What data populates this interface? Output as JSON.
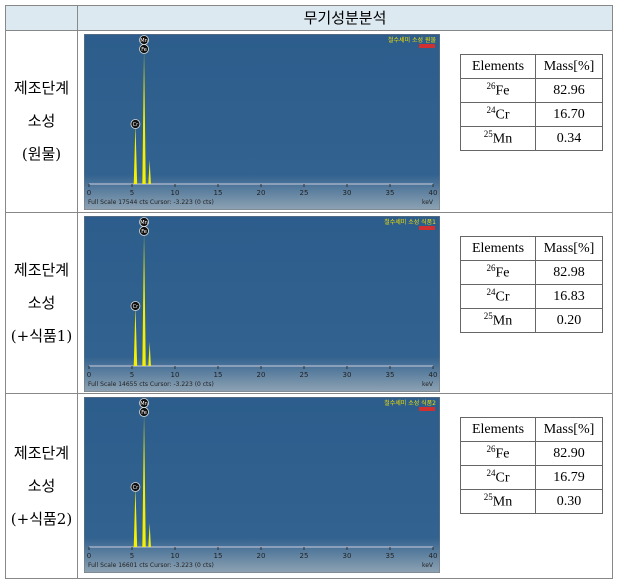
{
  "table": {
    "header": "무기성분분석",
    "rows": [
      {
        "stage": [
          "제조단계",
          "소성",
          "(원물)"
        ],
        "spectrum": {
          "sample_label": "철수세미 소성 원물",
          "footer": "Full Scale 17544 cts Cursor: -3.223 (0 cts)",
          "unit": "keV",
          "peaks": [
            "Mn",
            "Fe",
            "Cr"
          ],
          "xticks": [
            0,
            5,
            10,
            15,
            20,
            25,
            30,
            35,
            40
          ]
        },
        "elements": {
          "header": [
            "Elements",
            "Mass[%]"
          ],
          "rows": [
            [
              "26",
              "Fe",
              "82.96"
            ],
            [
              "24",
              "Cr",
              "16.70"
            ],
            [
              "25",
              "Mn",
              "0.34"
            ]
          ]
        }
      },
      {
        "stage": [
          "제조단계",
          "소성",
          "(+식품1)"
        ],
        "spectrum": {
          "sample_label": "철수세미 소성 식품1",
          "footer": "Full Scale 14655 cts Cursor: -3.223 (0 cts)",
          "unit": "keV",
          "peaks": [
            "Mn",
            "Fe",
            "Cr"
          ],
          "xticks": [
            0,
            5,
            10,
            15,
            20,
            25,
            30,
            35,
            40
          ]
        },
        "elements": {
          "header": [
            "Elements",
            "Mass[%]"
          ],
          "rows": [
            [
              "26",
              "Fe",
              "82.98"
            ],
            [
              "24",
              "Cr",
              "16.83"
            ],
            [
              "25",
              "Mn",
              "0.20"
            ]
          ]
        }
      },
      {
        "stage": [
          "제조단계",
          "소성",
          "(+식품2)"
        ],
        "spectrum": {
          "sample_label": "철수세미 소성 식품2",
          "footer": "Full Scale 16601 cts Cursor: -3.223 (0 cts)",
          "unit": "keV",
          "peaks": [
            "Mn",
            "Fe",
            "Cr"
          ],
          "xticks": [
            0,
            5,
            10,
            15,
            20,
            25,
            30,
            35,
            40
          ]
        },
        "elements": {
          "header": [
            "Elements",
            "Mass[%]"
          ],
          "rows": [
            [
              "26",
              "Fe",
              "82.90"
            ],
            [
              "24",
              "Cr",
              "16.79"
            ],
            [
              "25",
              "Mn",
              "0.30"
            ]
          ]
        }
      }
    ]
  }
}
